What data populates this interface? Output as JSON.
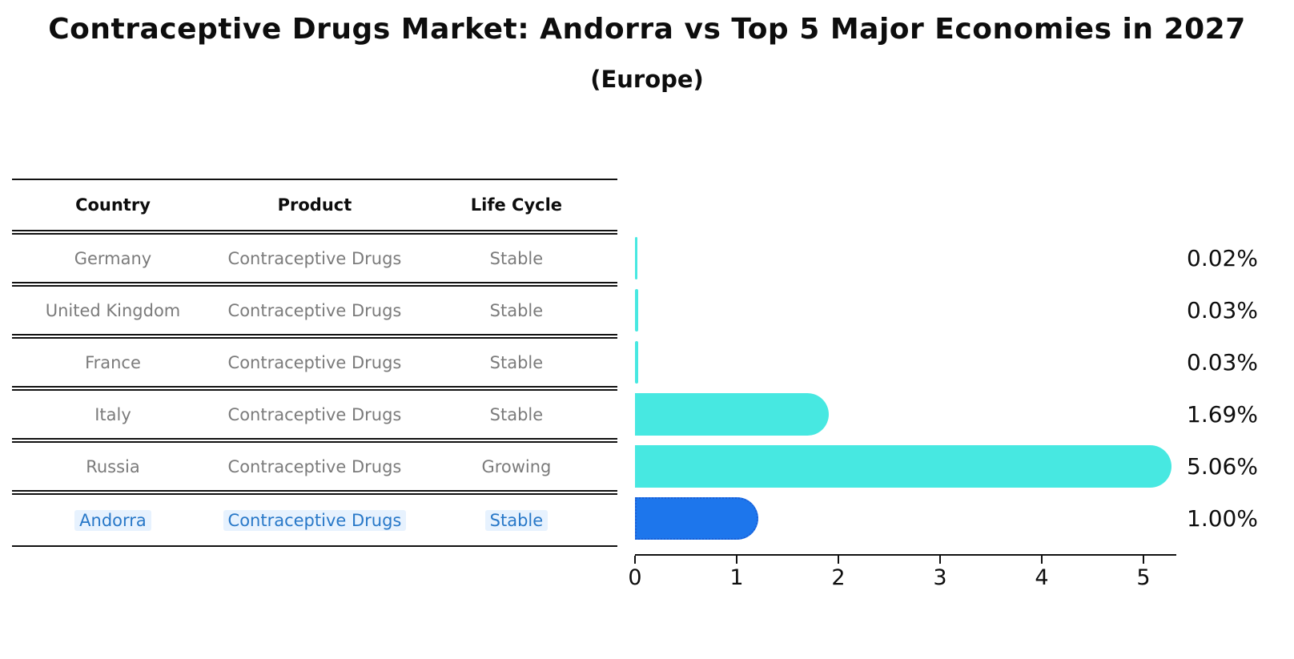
{
  "title": "Contraceptive Drugs Market: Andorra vs Top 5 Major Economies in 2027",
  "subtitle": "(Europe)",
  "table": {
    "headers": [
      "Country",
      "Product",
      "Life Cycle"
    ],
    "rows": [
      {
        "country": "Germany",
        "product": "Contraceptive Drugs",
        "life_cycle": "Stable",
        "highlighted": false
      },
      {
        "country": "United Kingdom",
        "product": "Contraceptive Drugs",
        "life_cycle": "Stable",
        "highlighted": false
      },
      {
        "country": "France",
        "product": "Contraceptive Drugs",
        "life_cycle": "Stable",
        "highlighted": false
      },
      {
        "country": "Italy",
        "product": "Contraceptive Drugs",
        "life_cycle": "Stable",
        "highlighted": false
      },
      {
        "country": "Russia",
        "product": "Contraceptive Drugs",
        "life_cycle": "Growing",
        "highlighted": false
      },
      {
        "country": "Andorra",
        "product": "Contraceptive Drugs",
        "life_cycle": "Stable",
        "highlighted": true
      }
    ]
  },
  "chart_data": {
    "type": "bar",
    "orientation": "horizontal",
    "title": "Contraceptive Drugs Market: Andorra vs Top 5 Major Economies in 2027 (Europe)",
    "categories": [
      "Germany",
      "United Kingdom",
      "France",
      "Italy",
      "Russia",
      "Andorra"
    ],
    "values": [
      0.02,
      0.03,
      0.03,
      1.69,
      5.06,
      1.0
    ],
    "value_labels": [
      "0.02%",
      "0.03%",
      "0.03%",
      "1.69%",
      "5.06%",
      "1.00%"
    ],
    "xticks": [
      "0",
      "1",
      "2",
      "3",
      "4",
      "5"
    ],
    "xlim": [
      0,
      5.3
    ],
    "grid": false,
    "legend": "none",
    "highlight_index": 5,
    "colors": {
      "default_bar": "#47E8E1",
      "highlight_bar": "#1D76EC",
      "highlight_border": "#1B5FD6",
      "row_text": "#7b7b7b",
      "highlight_text": "#2878c8"
    }
  }
}
